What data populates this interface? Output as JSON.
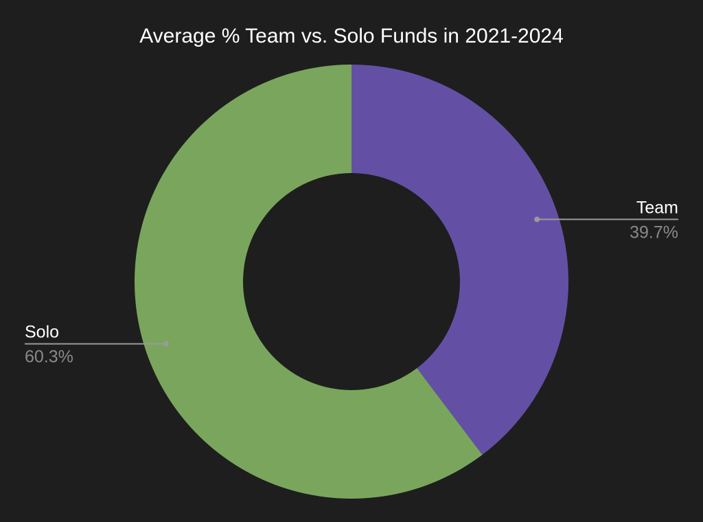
{
  "chart_data": {
    "type": "pie",
    "donut": true,
    "title": "Average % Team vs. Solo Funds in 2021-2024",
    "background": "#1e1e1e",
    "slices": [
      {
        "label": "Team",
        "value": 39.7,
        "value_label": "39.7%",
        "color": "#6350a5"
      },
      {
        "label": "Solo",
        "value": 60.3,
        "value_label": "60.3%",
        "color": "#79a65c"
      }
    ]
  }
}
